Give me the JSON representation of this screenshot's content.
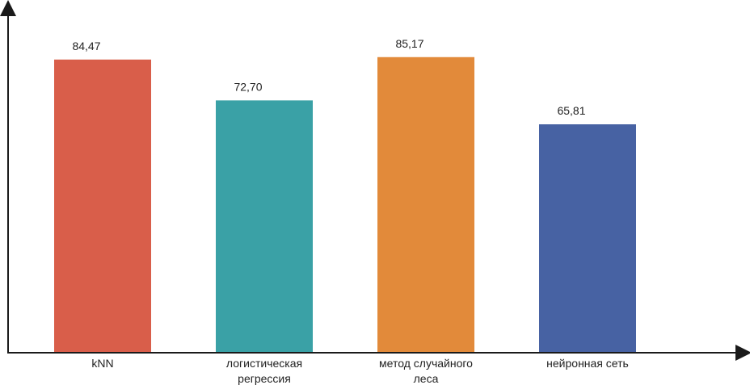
{
  "chart_data": {
    "type": "bar",
    "categories": [
      [
        "kNN"
      ],
      [
        "логистическая",
        "регрессия"
      ],
      [
        "метод случайного",
        "леса"
      ],
      [
        "нейронная сеть"
      ]
    ],
    "values": [
      "84,47",
      "72,70",
      "85,17",
      "65,81"
    ],
    "numeric_values": [
      84.47,
      72.7,
      85.17,
      65.81
    ],
    "colors": [
      "#d95e4a",
      "#3aa1a6",
      "#e28a3a",
      "#4762a3"
    ],
    "ylim": [
      0,
      100
    ],
    "grid": false,
    "axis_color": "#1a1a1a",
    "title": "",
    "xlabel": "",
    "ylabel": ""
  }
}
